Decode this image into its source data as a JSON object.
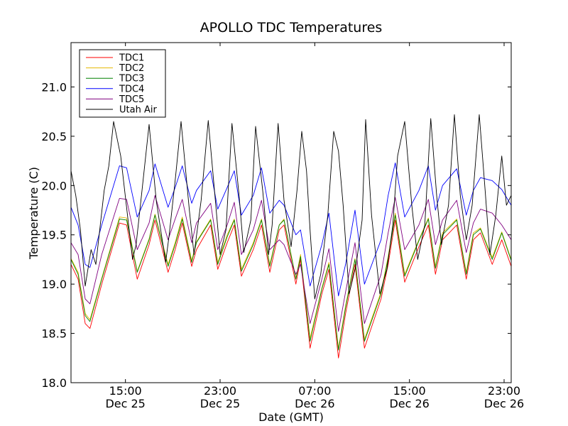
{
  "chart_data": {
    "type": "line",
    "title": "APOLLO TDC Temperatures",
    "xlabel": "Date (GMT)",
    "ylabel": "Temperature (C)",
    "xlim": [
      10.4,
      47.6
    ],
    "ylim": [
      18.0,
      21.45
    ],
    "y_ticks": [
      18.0,
      18.5,
      19.0,
      19.5,
      20.0,
      20.5,
      21.0
    ],
    "y_tick_labels": [
      "18.0",
      "18.5",
      "19.0",
      "19.5",
      "20.0",
      "20.5",
      "21.0"
    ],
    "x_ticks": [
      15,
      23,
      31,
      39,
      47
    ],
    "x_tick_labels": [
      {
        "time": "15:00",
        "date": "Dec 25"
      },
      {
        "time": "23:00",
        "date": "Dec 25"
      },
      {
        "time": "07:00",
        "date": "Dec 26"
      },
      {
        "time": "15:00",
        "date": "Dec 26"
      },
      {
        "time": "23:00",
        "date": "Dec 26"
      }
    ],
    "x_unit": "hours since Dec 25 00:00 GMT",
    "legend_position": "top-left",
    "series": [
      {
        "name": "TDC1",
        "color": "#ff0000",
        "x": [
          10.4,
          11.0,
          11.6,
          12.0,
          13.0,
          14.5,
          15.1,
          16.0,
          17.0,
          17.5,
          18.6,
          19.2,
          19.8,
          20.6,
          21.0,
          22.2,
          22.8,
          23.6,
          24.2,
          24.8,
          25.8,
          26.5,
          27.2,
          28.0,
          28.4,
          29.4,
          29.8,
          30.6,
          31.6,
          32.2,
          33.0,
          33.6,
          34.4,
          35.2,
          36.6,
          37.2,
          37.8,
          38.6,
          39.8,
          40.6,
          41.2,
          41.8,
          43.0,
          43.8,
          44.4,
          45.0,
          46.0,
          46.8,
          47.6
        ],
        "values": [
          19.2,
          19.05,
          18.6,
          18.55,
          19.0,
          19.62,
          19.6,
          19.05,
          19.4,
          19.65,
          19.12,
          19.35,
          19.62,
          19.18,
          19.35,
          19.6,
          19.15,
          19.42,
          19.6,
          19.08,
          19.35,
          19.6,
          19.12,
          19.55,
          19.6,
          19.0,
          19.25,
          18.35,
          18.9,
          19.15,
          18.25,
          18.7,
          19.2,
          18.35,
          18.85,
          19.2,
          19.65,
          19.02,
          19.38,
          19.6,
          19.1,
          19.45,
          19.6,
          19.05,
          19.45,
          19.52,
          19.2,
          19.45,
          19.18
        ]
      },
      {
        "name": "TDC2",
        "color": "#e6b800",
        "x": [
          10.4,
          11.0,
          11.6,
          12.0,
          13.0,
          14.5,
          15.1,
          16.0,
          17.0,
          17.5,
          18.6,
          19.2,
          19.8,
          20.6,
          21.0,
          22.2,
          22.8,
          23.6,
          24.2,
          24.8,
          25.8,
          26.5,
          27.2,
          28.0,
          28.4,
          29.4,
          29.8,
          30.6,
          31.6,
          32.2,
          33.0,
          33.6,
          34.4,
          35.2,
          36.6,
          37.2,
          37.8,
          38.6,
          39.8,
          40.6,
          41.2,
          41.8,
          43.0,
          43.8,
          44.4,
          45.0,
          46.0,
          46.8,
          47.6
        ],
        "values": [
          19.26,
          19.12,
          18.7,
          18.64,
          19.06,
          19.68,
          19.67,
          19.13,
          19.46,
          19.71,
          19.2,
          19.42,
          19.68,
          19.24,
          19.43,
          19.66,
          19.22,
          19.5,
          19.66,
          19.15,
          19.42,
          19.66,
          19.2,
          19.6,
          19.66,
          19.06,
          19.3,
          18.45,
          18.96,
          19.22,
          18.35,
          18.78,
          19.26,
          18.44,
          18.92,
          19.28,
          19.72,
          19.1,
          19.45,
          19.67,
          19.18,
          19.52,
          19.66,
          19.12,
          19.52,
          19.57,
          19.27,
          19.53,
          19.25
        ]
      },
      {
        "name": "TDC3",
        "color": "#008000",
        "x": [
          10.4,
          11.0,
          11.6,
          12.0,
          13.0,
          14.5,
          15.1,
          16.0,
          17.0,
          17.5,
          18.6,
          19.2,
          19.8,
          20.6,
          21.0,
          22.2,
          22.8,
          23.6,
          24.2,
          24.8,
          25.8,
          26.5,
          27.2,
          28.0,
          28.4,
          29.4,
          29.8,
          30.6,
          31.6,
          32.2,
          33.0,
          33.6,
          34.4,
          35.2,
          36.6,
          37.2,
          37.8,
          38.6,
          39.8,
          40.6,
          41.2,
          41.8,
          43.0,
          43.8,
          44.4,
          45.0,
          46.0,
          46.8,
          47.6
        ],
        "values": [
          19.25,
          19.1,
          18.68,
          18.62,
          19.05,
          19.66,
          19.65,
          19.12,
          19.45,
          19.7,
          19.18,
          19.4,
          19.66,
          19.22,
          19.42,
          19.65,
          19.2,
          19.48,
          19.65,
          19.13,
          19.4,
          19.65,
          19.18,
          19.6,
          19.65,
          19.05,
          19.28,
          18.42,
          18.95,
          19.2,
          18.33,
          18.76,
          19.25,
          18.42,
          18.9,
          19.26,
          19.7,
          19.08,
          19.44,
          19.66,
          19.16,
          19.5,
          19.65,
          19.1,
          19.5,
          19.56,
          19.25,
          19.52,
          19.24
        ]
      },
      {
        "name": "TDC4",
        "color": "#0000ff",
        "x": [
          10.4,
          11.0,
          11.6,
          12.0,
          13.0,
          14.5,
          15.1,
          16.0,
          17.0,
          17.5,
          18.6,
          19.2,
          19.8,
          20.6,
          21.0,
          22.2,
          22.8,
          23.6,
          24.2,
          24.8,
          25.8,
          26.5,
          27.2,
          28.0,
          28.4,
          29.4,
          29.8,
          30.6,
          31.6,
          32.2,
          33.0,
          33.6,
          34.4,
          35.2,
          36.6,
          37.2,
          37.8,
          38.6,
          39.8,
          40.6,
          41.2,
          41.8,
          43.0,
          43.8,
          44.4,
          45.0,
          46.0,
          46.8,
          47.6
        ],
        "values": [
          19.78,
          19.6,
          19.2,
          19.17,
          19.6,
          20.2,
          20.18,
          19.68,
          19.95,
          20.22,
          19.78,
          19.98,
          20.2,
          19.82,
          19.95,
          20.15,
          19.76,
          19.98,
          20.15,
          19.7,
          19.9,
          20.18,
          19.72,
          19.85,
          19.8,
          19.5,
          19.55,
          18.98,
          19.4,
          19.72,
          18.88,
          19.2,
          19.75,
          19.0,
          19.45,
          19.9,
          20.23,
          19.68,
          19.95,
          20.2,
          19.75,
          20.0,
          20.17,
          19.7,
          19.95,
          20.08,
          20.05,
          19.96,
          19.8
        ]
      },
      {
        "name": "TDC5",
        "color": "#800080",
        "x": [
          10.4,
          11.0,
          11.6,
          12.0,
          13.0,
          14.5,
          15.1,
          16.0,
          17.0,
          17.5,
          18.6,
          19.2,
          19.8,
          20.6,
          21.0,
          22.2,
          22.8,
          23.6,
          24.2,
          24.8,
          25.8,
          26.5,
          27.2,
          28.0,
          28.4,
          29.4,
          29.8,
          30.6,
          31.6,
          32.2,
          33.0,
          33.6,
          34.4,
          35.2,
          36.6,
          37.2,
          37.8,
          38.6,
          39.8,
          40.6,
          41.2,
          41.8,
          43.0,
          43.8,
          44.4,
          45.0,
          46.0,
          46.8,
          47.6
        ],
        "values": [
          19.42,
          19.3,
          18.85,
          18.8,
          19.3,
          19.87,
          19.86,
          19.35,
          19.62,
          19.9,
          19.45,
          19.66,
          19.86,
          19.42,
          19.62,
          19.82,
          19.35,
          19.6,
          19.83,
          19.3,
          19.55,
          19.85,
          19.35,
          19.45,
          19.4,
          19.1,
          19.2,
          18.6,
          19.05,
          19.36,
          18.52,
          18.92,
          19.42,
          18.6,
          19.1,
          19.52,
          19.88,
          19.35,
          19.6,
          19.86,
          19.4,
          19.65,
          19.85,
          19.32,
          19.62,
          19.76,
          19.72,
          19.6,
          19.45
        ]
      },
      {
        "name": "Utah Air",
        "color": "#000000",
        "x": [
          10.4,
          10.8,
          11.2,
          11.6,
          12.1,
          12.5,
          13.2,
          13.6,
          14.0,
          14.6,
          15.6,
          15.9,
          16.4,
          17.0,
          17.6,
          18.4,
          18.7,
          19.2,
          19.7,
          20.4,
          20.8,
          21.4,
          22.0,
          22.6,
          23.0,
          23.5,
          24.0,
          24.6,
          25.0,
          25.6,
          26.0,
          26.6,
          27.1,
          27.4,
          27.9,
          28.4,
          29.0,
          29.5,
          29.9,
          30.3,
          30.6,
          31.0,
          31.5,
          32.1,
          32.6,
          33.0,
          33.4,
          33.9,
          34.5,
          35.0,
          35.3,
          35.8,
          36.5,
          37.1,
          37.6,
          38.0,
          38.6,
          39.2,
          39.7,
          40.3,
          40.8,
          41.3,
          41.7,
          42.3,
          42.8,
          43.3,
          43.8,
          44.3,
          44.9,
          45.4,
          45.8,
          46.3,
          46.8,
          47.2,
          47.6
        ],
        "values": [
          20.15,
          19.9,
          19.55,
          18.98,
          19.35,
          19.2,
          19.95,
          20.2,
          20.65,
          20.3,
          19.25,
          19.4,
          19.95,
          20.62,
          19.85,
          19.22,
          19.5,
          20.05,
          20.65,
          19.75,
          19.3,
          19.85,
          20.66,
          19.85,
          19.3,
          19.55,
          20.63,
          19.9,
          19.32,
          19.65,
          20.6,
          19.95,
          19.3,
          19.6,
          20.63,
          19.85,
          19.38,
          19.95,
          20.55,
          20.15,
          19.55,
          18.85,
          19.1,
          19.7,
          20.55,
          20.35,
          19.8,
          18.9,
          19.2,
          19.65,
          20.67,
          19.7,
          18.9,
          19.15,
          19.6,
          20.3,
          20.65,
          19.8,
          19.25,
          19.6,
          20.68,
          19.9,
          19.4,
          19.8,
          20.72,
          19.9,
          19.45,
          19.8,
          20.72,
          19.95,
          19.3,
          19.7,
          20.3,
          19.8,
          19.9
        ]
      }
    ]
  }
}
